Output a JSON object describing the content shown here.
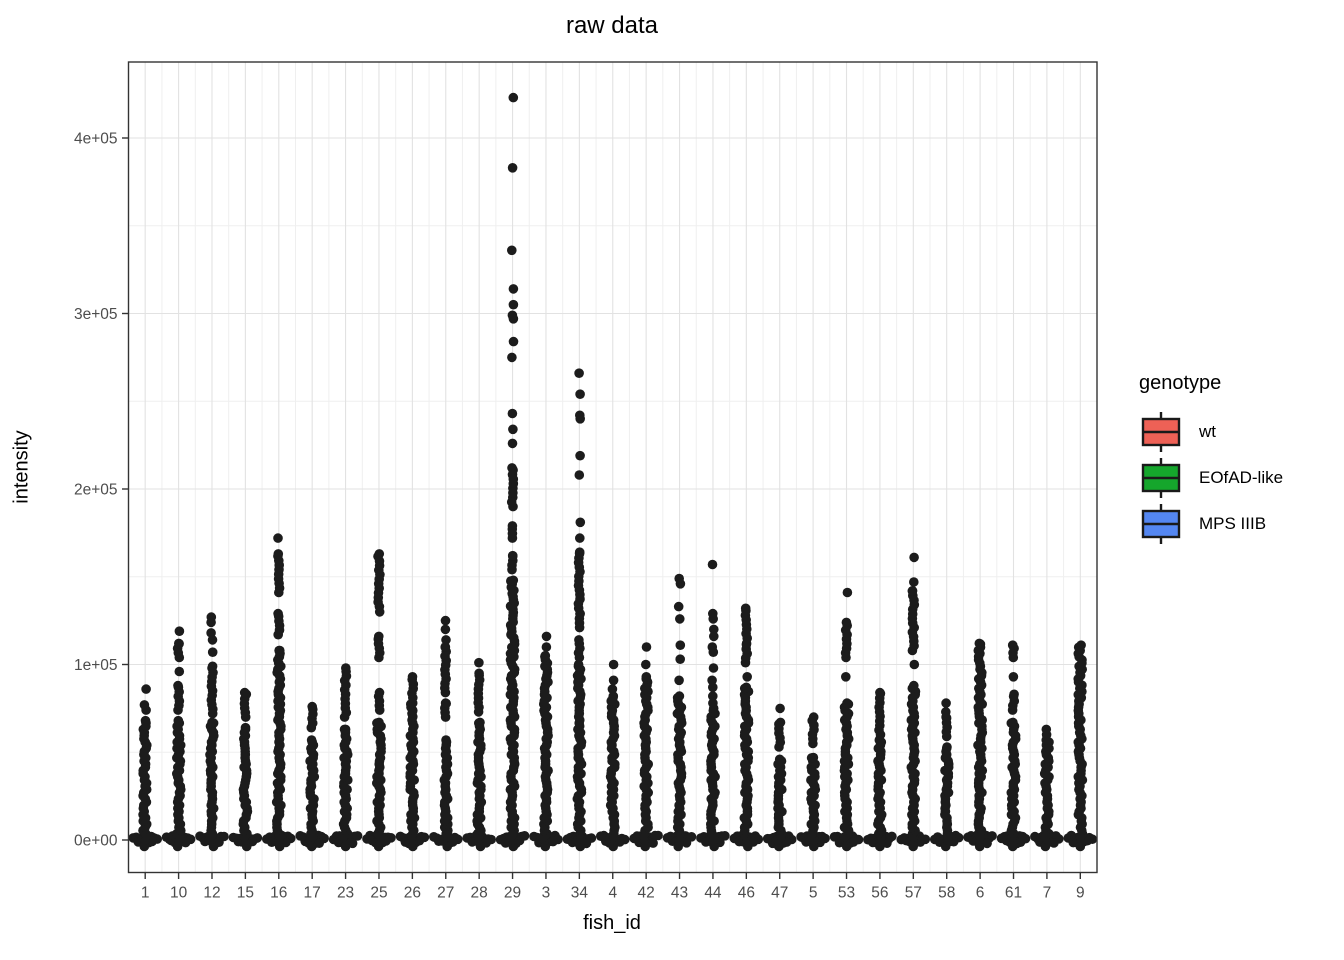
{
  "chart_data": {
    "type": "scatter",
    "variant": "jittered-strip-plot",
    "title": "raw data",
    "xlabel": "fish_id",
    "ylabel": "intensity",
    "x_categories": [
      "1",
      "10",
      "12",
      "15",
      "16",
      "17",
      "23",
      "25",
      "26",
      "27",
      "28",
      "29",
      "3",
      "34",
      "4",
      "42",
      "43",
      "44",
      "46",
      "47",
      "5",
      "53",
      "56",
      "57",
      "58",
      "6",
      "61",
      "7",
      "9"
    ],
    "y_ticks": [
      {
        "label": "0e+00",
        "value": 0
      },
      {
        "label": "1e+05",
        "value": 100000
      },
      {
        "label": "2e+05",
        "value": 200000
      },
      {
        "label": "3e+05",
        "value": 300000
      },
      {
        "label": "4e+05",
        "value": 400000
      }
    ],
    "ylim": [
      -21000,
      444000
    ],
    "grid": {
      "major": true,
      "minor": true,
      "major_color": "#E2E2E2",
      "minor_color": "#EFEFEF"
    },
    "panel_border_color": "#333333",
    "tick_label_color": "#4D4D4D",
    "point_color": "#1C1C1C",
    "legend": {
      "title": "genotype",
      "position": "right",
      "key_glyph": "boxplot",
      "entries": [
        {
          "label": "wt",
          "fill": "#EE6156"
        },
        {
          "label": "EOfAD-like",
          "fill": "#15A62C"
        },
        {
          "label": "MPS IIIB",
          "fill": "#5487F2"
        }
      ]
    },
    "series": [
      {
        "fish_id": "1",
        "dense_runs": [
          [
            0,
            68000
          ]
        ],
        "points": [
          74000,
          77000,
          86000
        ]
      },
      {
        "fish_id": "10",
        "dense_runs": [
          [
            0,
            68000
          ],
          [
            74000,
            88000
          ],
          [
            104000,
            112000
          ]
        ],
        "points": [
          96000,
          119000
        ]
      },
      {
        "fish_id": "12",
        "dense_runs": [
          [
            0,
            67000
          ],
          [
            72000,
            99000
          ]
        ],
        "points": [
          107000,
          114000,
          118000,
          124000,
          127000
        ]
      },
      {
        "fish_id": "15",
        "dense_runs": [
          [
            0,
            64000
          ],
          [
            70000,
            84000
          ]
        ],
        "points": []
      },
      {
        "fish_id": "16",
        "dense_runs": [
          [
            0,
            108000
          ],
          [
            117000,
            129000
          ],
          [
            141000,
            163000
          ]
        ],
        "points": [
          172000
        ]
      },
      {
        "fish_id": "17",
        "dense_runs": [
          [
            0,
            57000
          ],
          [
            64000,
            76000
          ]
        ],
        "points": []
      },
      {
        "fish_id": "23",
        "dense_runs": [
          [
            0,
            63000
          ],
          [
            70000,
            98000
          ]
        ],
        "points": []
      },
      {
        "fish_id": "25",
        "dense_runs": [
          [
            0,
            67000
          ],
          [
            74000,
            84000
          ],
          [
            104000,
            116000
          ],
          [
            133000,
            163000
          ]
        ],
        "points": [
          130000
        ]
      },
      {
        "fish_id": "26",
        "dense_runs": [
          [
            0,
            78000
          ],
          [
            81000,
            93000
          ]
        ],
        "points": []
      },
      {
        "fish_id": "27",
        "dense_runs": [
          [
            0,
            57000
          ],
          [
            70000,
            78000
          ],
          [
            84000,
            110000
          ]
        ],
        "points": [
          114000,
          120000,
          125000
        ]
      },
      {
        "fish_id": "28",
        "dense_runs": [
          [
            0,
            67000
          ],
          [
            73000,
            95000
          ]
        ],
        "points": [
          101000
        ]
      },
      {
        "fish_id": "29",
        "dense_runs": [
          [
            0,
            148000
          ],
          [
            154000,
            162000
          ],
          [
            172000,
            179000
          ],
          [
            190000,
            212000
          ]
        ],
        "points": [
          226000,
          234000,
          243000,
          275000,
          284000,
          297000,
          299000,
          305000,
          314000,
          336000,
          383000,
          423000
        ]
      },
      {
        "fish_id": "3",
        "dense_runs": [
          [
            0,
            105000
          ]
        ],
        "points": [
          110000,
          116000
        ]
      },
      {
        "fish_id": "34",
        "dense_runs": [
          [
            0,
            100000
          ],
          [
            104000,
            114000
          ],
          [
            121000,
            129000
          ],
          [
            132000,
            164000
          ]
        ],
        "points": [
          172000,
          181000,
          208000,
          219000,
          240000,
          242000,
          254000,
          266000
        ]
      },
      {
        "fish_id": "4",
        "dense_runs": [
          [
            0,
            82000
          ]
        ],
        "points": [
          86000,
          91000,
          100000
        ]
      },
      {
        "fish_id": "42",
        "dense_runs": [
          [
            0,
            93000
          ]
        ],
        "points": [
          100000,
          110000
        ]
      },
      {
        "fish_id": "43",
        "dense_runs": [
          [
            0,
            82000
          ]
        ],
        "points": [
          91000,
          103000,
          111000,
          126000,
          133000,
          146000,
          149000
        ]
      },
      {
        "fish_id": "44",
        "dense_runs": [
          [
            0,
            75000
          ]
        ],
        "points": [
          78000,
          82000,
          87000,
          91000,
          98000,
          107000,
          110000,
          116000,
          120000,
          126000,
          129000,
          157000
        ]
      },
      {
        "fish_id": "46",
        "dense_runs": [
          [
            0,
            87000
          ],
          [
            101000,
            112000
          ],
          [
            115000,
            132000
          ]
        ],
        "points": [
          93000
        ]
      },
      {
        "fish_id": "47",
        "dense_runs": [
          [
            0,
            46000
          ],
          [
            53000,
            67000
          ]
        ],
        "points": [
          75000
        ]
      },
      {
        "fish_id": "5",
        "dense_runs": [
          [
            0,
            47000
          ],
          [
            55000,
            70000
          ]
        ],
        "points": []
      },
      {
        "fish_id": "53",
        "dense_runs": [
          [
            0,
            78000
          ],
          [
            104000,
            124000
          ]
        ],
        "points": [
          93000,
          141000
        ]
      },
      {
        "fish_id": "56",
        "dense_runs": [
          [
            0,
            57000
          ],
          [
            60000,
            84000
          ]
        ],
        "points": []
      },
      {
        "fish_id": "57",
        "dense_runs": [
          [
            0,
            88000
          ],
          [
            108000,
            142000
          ]
        ],
        "points": [
          100000,
          147000,
          161000
        ]
      },
      {
        "fish_id": "58",
        "dense_runs": [
          [
            0,
            53000
          ],
          [
            59000,
            70000
          ]
        ],
        "points": [
          73000,
          78000
        ]
      },
      {
        "fish_id": "6",
        "dense_runs": [
          [
            0,
            112000
          ]
        ],
        "points": []
      },
      {
        "fish_id": "61",
        "dense_runs": [
          [
            0,
            67000
          ],
          [
            74000,
            83000
          ],
          [
            104000,
            111000
          ]
        ],
        "points": [
          93000
        ]
      },
      {
        "fish_id": "7",
        "dense_runs": [
          [
            0,
            57000
          ]
        ],
        "points": [
          60000,
          63000
        ]
      },
      {
        "fish_id": "9",
        "dense_runs": [
          [
            0,
            111000
          ]
        ],
        "points": []
      }
    ]
  }
}
